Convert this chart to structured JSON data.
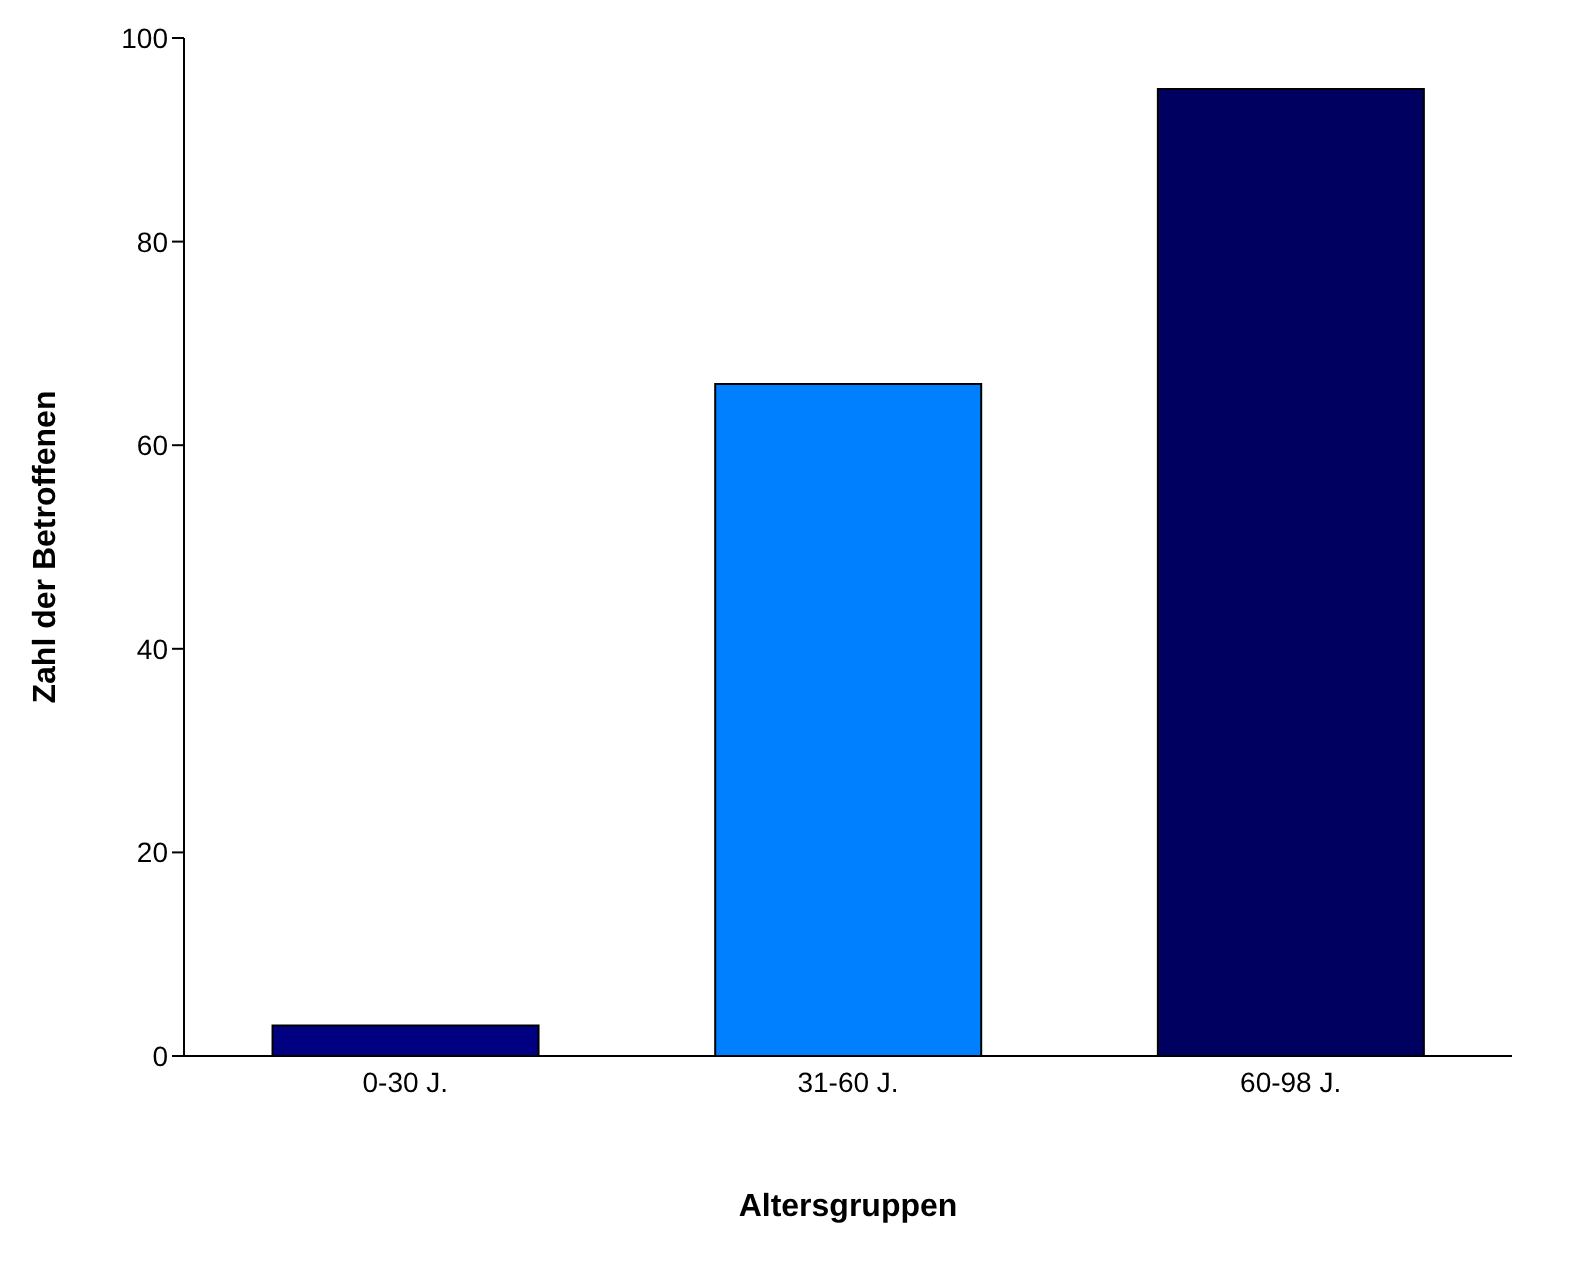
{
  "chart_data": {
    "type": "bar",
    "xlabel": "Altersgruppen",
    "ylabel": "Zahl der Betroffenen",
    "categories": [
      "0-30 J.",
      "31-60 J.",
      "60-98 J."
    ],
    "values": [
      3,
      66,
      95
    ],
    "colors": [
      "#000080",
      "#0080ff",
      "#000060"
    ],
    "ylim": [
      0,
      100
    ],
    "yticks": [
      0,
      20,
      40,
      60,
      80,
      100
    ],
    "grid": false,
    "legend": false
  }
}
